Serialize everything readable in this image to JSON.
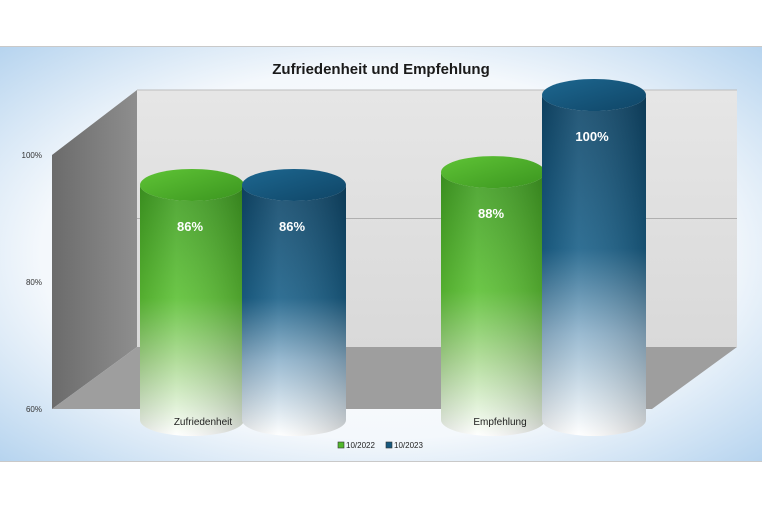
{
  "chart_data": {
    "type": "bar",
    "title": "Zufriedenheit und Empfehlung",
    "categories": [
      "Zufriedenheit",
      "Empfehlung"
    ],
    "series": [
      {
        "name": "10/2022",
        "values": [
          86,
          88
        ],
        "labels": [
          "86%",
          "88%"
        ]
      },
      {
        "name": "10/2023",
        "values": [
          86,
          100
        ],
        "labels": [
          "86%",
          "100%"
        ]
      }
    ],
    "ylim": [
      60,
      100
    ],
    "yticks": [
      {
        "value": 60,
        "label": "60%"
      },
      {
        "value": 80,
        "label": "80%"
      },
      {
        "value": 100,
        "label": "100%"
      }
    ],
    "style": "3d-cylinder",
    "grid": true,
    "legend_position": "bottom"
  },
  "colors": {
    "series_2022": "#52b82c",
    "series_2023": "#17597f",
    "background_edge": "#b9d6ef",
    "wall": "#e3e3e3",
    "floor": "#9c9c9c",
    "side_wall": "#7f7f7f"
  }
}
